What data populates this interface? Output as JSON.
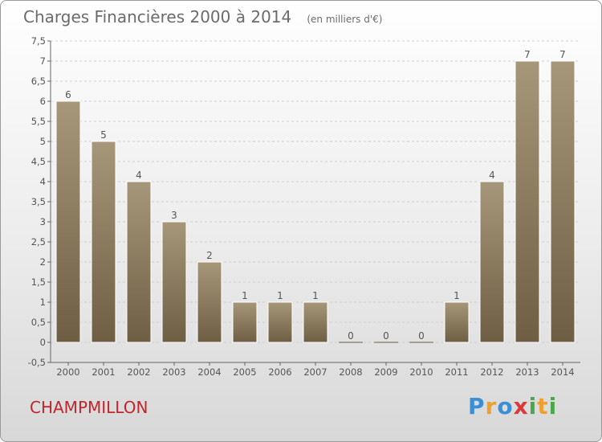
{
  "header": {
    "title": "Charges Financières 2000 à 2014",
    "subtitle": "(en milliers d'€)"
  },
  "footer": {
    "commune": "CHAMPMILLON",
    "logo_letters": [
      "P",
      "r",
      "o",
      "x",
      "i",
      "t",
      "i"
    ],
    "logo_colors": [
      "#3a8fd6",
      "#f0a030",
      "#3a8fd6",
      "#d93a3a",
      "#4aa84a",
      "#f0a030",
      "#4aa84a"
    ]
  },
  "colors": {
    "bar_top": "#a6977a",
    "bar_bottom": "#6e5e44",
    "commune": "#c0262b"
  },
  "chart_data": {
    "type": "bar",
    "title": "Charges Financières 2000 à 2014",
    "subtitle": "(en milliers d'€)",
    "categories": [
      "2000",
      "2001",
      "2002",
      "2003",
      "2004",
      "2005",
      "2006",
      "2007",
      "2008",
      "2009",
      "2010",
      "2011",
      "2012",
      "2013",
      "2014"
    ],
    "values": [
      6,
      5,
      4,
      3,
      2,
      1,
      1,
      1,
      0,
      0,
      0,
      1,
      4,
      7,
      7
    ],
    "value_labels": [
      "6",
      "5",
      "4",
      "3",
      "2",
      "1",
      "1",
      "1",
      "0",
      "0",
      "0",
      "1",
      "4",
      "7",
      "7"
    ],
    "ylim": [
      -0.5,
      7.5
    ],
    "yticks": [
      "-0,5",
      "0",
      "0,5",
      "1",
      "1,5",
      "2",
      "2,5",
      "3",
      "3,5",
      "4",
      "4,5",
      "5",
      "5,5",
      "6",
      "6,5",
      "7",
      "7,5"
    ],
    "ytick_values": [
      -0.5,
      0,
      0.5,
      1,
      1.5,
      2,
      2.5,
      3,
      3.5,
      4,
      4.5,
      5,
      5.5,
      6,
      6.5,
      7,
      7.5
    ],
    "grid": true,
    "xlabel": "",
    "ylabel": ""
  }
}
